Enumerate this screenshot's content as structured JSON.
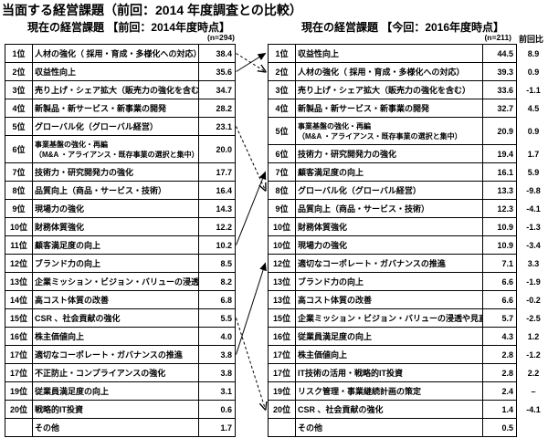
{
  "page_title": "当面する経営課題（前回：2014 年度調査との比較）",
  "chart_data": [
    {
      "type": "table",
      "title": "現在の経営課題 【前回：2014年度時点】",
      "sample_size_label": "(n=294)",
      "value_unit": "%",
      "rows": [
        {
          "rank": "1位",
          "label": "人材の強化（ 採用・育成・多様化への対応）",
          "value": "38.4"
        },
        {
          "rank": "2位",
          "label": "収益性向上",
          "value": "35.6"
        },
        {
          "rank": "3位",
          "label": "売り上げ・シェア拡大（販売力の強化を含む）",
          "value": "34.7"
        },
        {
          "rank": "4位",
          "label": "新製品・新サービス・新事業の開発",
          "value": "28.2"
        },
        {
          "rank": "5位",
          "label": "グローバル化（グローバル経営）",
          "value": "23.1"
        },
        {
          "rank": "6位",
          "label": "事業基盤の強化・再編",
          "label2": "（M&A ・アライアンス・既存事業の選択と集中）",
          "value": "20.0"
        },
        {
          "rank": "7位",
          "label": "技術力・研究開発力の強化",
          "value": "17.7"
        },
        {
          "rank": "8位",
          "label": "品質向上（商品・サービス・技術）",
          "value": "16.4"
        },
        {
          "rank": "9位",
          "label": "現場力の強化",
          "value": "14.3"
        },
        {
          "rank": "10位",
          "label": "財務体質強化",
          "value": "12.2"
        },
        {
          "rank": "11位",
          "label": "顧客満足度の向上",
          "value": "10.2"
        },
        {
          "rank": "12位",
          "label": "ブランド力の向上",
          "value": "8.5"
        },
        {
          "rank": "13位",
          "label": "企業ミッション・ビジョン・バリューの浸透や見直し",
          "value": "8.2"
        },
        {
          "rank": "14位",
          "label": "高コスト体質の改善",
          "value": "6.8"
        },
        {
          "rank": "15位",
          "label": "CSR 、社会貢献の強化",
          "value": "5.5"
        },
        {
          "rank": "16位",
          "label": "株主価値向上",
          "value": "4.0"
        },
        {
          "rank": "17位",
          "label": "適切なコーポレート・ガバナンスの推進",
          "value": "3.8"
        },
        {
          "rank": "17位",
          "label": "不正防止・コンプライアンスの強化",
          "value": "3.8"
        },
        {
          "rank": "19位",
          "label": "従業員満足度の向上",
          "value": "3.1"
        },
        {
          "rank": "20位",
          "label": "戦略的IT投資",
          "value": "0.6"
        },
        {
          "rank": "",
          "label": "その他",
          "value": "1.7"
        }
      ]
    },
    {
      "type": "table",
      "title": "現在の経営課題 【今回：2016年度時点】",
      "sample_size_label": "(n=211)",
      "diff_column_header": "前回比",
      "value_unit": "%",
      "rows": [
        {
          "rank": "1位",
          "label": "収益性向上",
          "value": "44.5",
          "diff": "8.9"
        },
        {
          "rank": "2位",
          "label": "人材の強化（ 採用・育成・多様化への対応）",
          "value": "39.3",
          "diff": "0.9"
        },
        {
          "rank": "3位",
          "label": "売り上げ・シェア拡大（販売力の強化を含む）",
          "value": "33.6",
          "diff": "-1.1"
        },
        {
          "rank": "4位",
          "label": "新製品・新サービス・新事業の開発",
          "value": "32.7",
          "diff": "4.5"
        },
        {
          "rank": "5位",
          "label": "事業基盤の強化・再編",
          "label2": "（M&A ・アライアンス・既存事業の選択と集中）",
          "value": "20.9",
          "diff": "0.9"
        },
        {
          "rank": "6位",
          "label": "技術力・研究開発力の強化",
          "value": "19.4",
          "diff": "1.7"
        },
        {
          "rank": "7位",
          "label": "顧客満足度の向上",
          "value": "16.1",
          "diff": "5.9"
        },
        {
          "rank": "8位",
          "label": "グローバル化（グローバル経営）",
          "value": "13.3",
          "diff": "-9.8"
        },
        {
          "rank": "9位",
          "label": "品質向上（商品・サービス・技術）",
          "value": "12.3",
          "diff": "-4.1"
        },
        {
          "rank": "10位",
          "label": "財務体質強化",
          "value": "10.9",
          "diff": "-1.3"
        },
        {
          "rank": "10位",
          "label": "現場力の強化",
          "value": "10.9",
          "diff": "-3.4"
        },
        {
          "rank": "12位",
          "label": "適切なコーポレート・ガバナンスの推進",
          "value": "7.1",
          "diff": "3.3"
        },
        {
          "rank": "13位",
          "label": "ブランド力の向上",
          "value": "6.6",
          "diff": "-1.9"
        },
        {
          "rank": "13位",
          "label": "高コスト体質の改善",
          "value": "6.6",
          "diff": "-0.2"
        },
        {
          "rank": "15位",
          "label": "企業ミッション・ビジョン・バリューの浸透や見直し",
          "value": "5.7",
          "diff": "-2.5"
        },
        {
          "rank": "16位",
          "label": "従業員満足度の向上",
          "value": "4.3",
          "diff": "1.2"
        },
        {
          "rank": "17位",
          "label": "株主価値向上",
          "value": "2.8",
          "diff": "-1.2"
        },
        {
          "rank": "17位",
          "label": "IT技術の活用・戦略的IT投資",
          "value": "2.8",
          "diff": "2.2"
        },
        {
          "rank": "19位",
          "label": "リスク管理・事業継続計画の策定",
          "value": "2.4",
          "diff": "–"
        },
        {
          "rank": "20位",
          "label": "CSR 、社会貢献の強化",
          "value": "1.4",
          "diff": "-4.1"
        },
        {
          "rank": "",
          "label": "その他",
          "value": "0.5",
          "diff": ""
        }
      ]
    }
  ],
  "arrows": [
    {
      "from": 0,
      "to": 1,
      "style": "dashed"
    },
    {
      "from": 1,
      "to": 0,
      "style": "solid"
    },
    {
      "from": 4,
      "to": 7,
      "style": "dashed"
    },
    {
      "from": 10,
      "to": 6,
      "style": "solid"
    },
    {
      "from": 16,
      "to": 11,
      "style": "solid"
    },
    {
      "from": 14,
      "to": 19,
      "style": "dashed"
    }
  ],
  "colors": {
    "ink": "#000000",
    "background": "#ffffff"
  }
}
